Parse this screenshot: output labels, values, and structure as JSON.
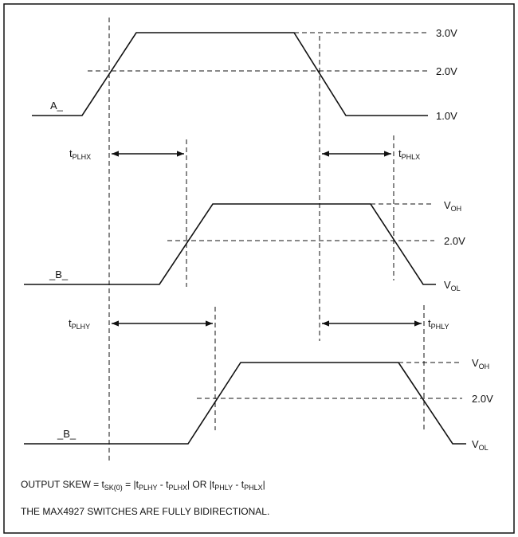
{
  "waveforms": {
    "a": {
      "label": "A_",
      "levels": [
        "3.0V",
        "2.0V",
        "1.0V"
      ]
    },
    "b1": {
      "label": "_B_",
      "levels": {
        "high_main": "V",
        "high_sub": "OH",
        "mid": "2.0V",
        "low_main": "V",
        "low_sub": "OL"
      }
    },
    "b2": {
      "label": "_B_",
      "levels": {
        "high_main": "V",
        "high_sub": "OH",
        "mid": "2.0V",
        "low_main": "V",
        "low_sub": "OL"
      }
    }
  },
  "timings": {
    "plhx": {
      "main": "t",
      "sub": "PLHX"
    },
    "phlx": {
      "main": "t",
      "sub": "PHLX"
    },
    "plhy": {
      "main": "t",
      "sub": "PLHY"
    },
    "phly": {
      "main": "t",
      "sub": "PHLY"
    }
  },
  "notes": {
    "skew": {
      "p1": "OUTPUT SKEW = t",
      "s1": "SK(0)",
      "p2": " = |t",
      "s2": "PLHY",
      "p3": " - t",
      "s3": "PLHX",
      "p4": "| OR |t",
      "s4": "PHLY",
      "p5": " - t",
      "s5": "PHLX",
      "p6": "|"
    },
    "bidirectional": "THE MAX4927 SWITCHES ARE FULLY BIDIRECTIONAL."
  }
}
